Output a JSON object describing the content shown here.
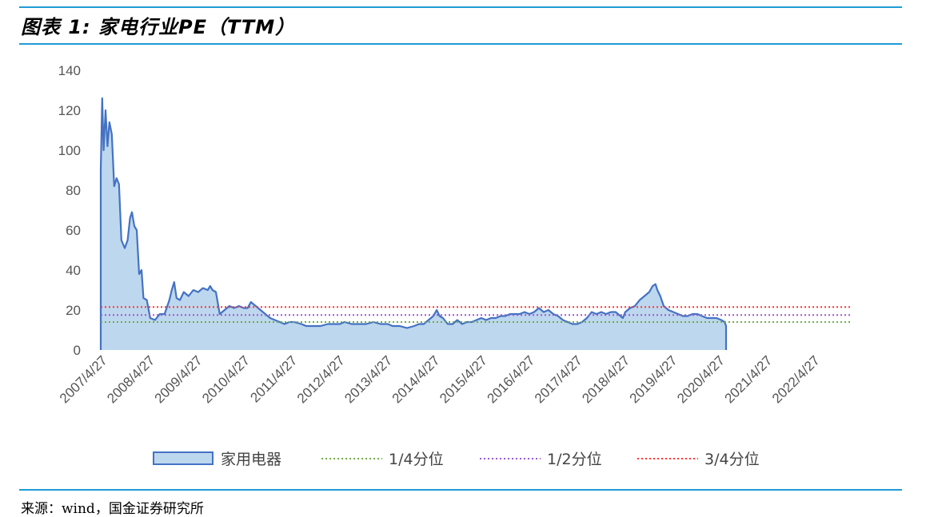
{
  "header": {
    "title": "图表 1:  家电行业PE（TTM）"
  },
  "footer": {
    "source": "来源：wind，国金证券研究所"
  },
  "colors": {
    "rule": "#1f9bd6",
    "series_line": "#4472c4",
    "series_fill": "#bdd7ee",
    "q1": "#70ad47",
    "q2": "#9b59d0",
    "q3": "#ff3333"
  },
  "chart_data": {
    "type": "area",
    "title": "",
    "xlabel": "",
    "ylabel": "",
    "ylim": [
      0,
      140
    ],
    "yticks": [
      0,
      20,
      40,
      60,
      80,
      100,
      120,
      140
    ],
    "x_tick_labels": [
      "2007/4/27",
      "2008/4/27",
      "2009/4/27",
      "2010/4/27",
      "2011/4/27",
      "2012/4/27",
      "2013/4/27",
      "2014/4/27",
      "2015/4/27",
      "2016/4/27",
      "2017/4/27",
      "2018/4/27",
      "2019/4/27",
      "2020/4/27",
      "2021/4/27",
      "2022/4/27"
    ],
    "x_range": [
      2007.32,
      2022.95
    ],
    "series": [
      {
        "name": "家用电器",
        "points": [
          [
            2007.32,
            90
          ],
          [
            2007.35,
            126
          ],
          [
            2007.38,
            100
          ],
          [
            2007.42,
            120
          ],
          [
            2007.46,
            102
          ],
          [
            2007.5,
            114
          ],
          [
            2007.55,
            108
          ],
          [
            2007.6,
            82
          ],
          [
            2007.65,
            86
          ],
          [
            2007.7,
            83
          ],
          [
            2007.75,
            55
          ],
          [
            2007.82,
            51
          ],
          [
            2007.88,
            55
          ],
          [
            2007.93,
            66
          ],
          [
            2007.97,
            69
          ],
          [
            2008.02,
            62
          ],
          [
            2008.07,
            60
          ],
          [
            2008.12,
            38
          ],
          [
            2008.17,
            40
          ],
          [
            2008.21,
            26
          ],
          [
            2008.28,
            25
          ],
          [
            2008.35,
            16
          ],
          [
            2008.45,
            15
          ],
          [
            2008.55,
            18
          ],
          [
            2008.65,
            18
          ],
          [
            2008.75,
            25
          ],
          [
            2008.8,
            30
          ],
          [
            2008.85,
            34
          ],
          [
            2008.9,
            26
          ],
          [
            2008.97,
            25
          ],
          [
            2009.05,
            29
          ],
          [
            2009.15,
            27
          ],
          [
            2009.25,
            30
          ],
          [
            2009.35,
            29
          ],
          [
            2009.45,
            31
          ],
          [
            2009.55,
            30
          ],
          [
            2009.6,
            32
          ],
          [
            2009.65,
            30
          ],
          [
            2009.72,
            29
          ],
          [
            2009.8,
            18
          ],
          [
            2009.9,
            20
          ],
          [
            2010.0,
            22
          ],
          [
            2010.1,
            21
          ],
          [
            2010.2,
            22
          ],
          [
            2010.3,
            21
          ],
          [
            2010.38,
            21
          ],
          [
            2010.45,
            24
          ],
          [
            2010.55,
            22
          ],
          [
            2010.65,
            20
          ],
          [
            2010.75,
            18
          ],
          [
            2010.85,
            16
          ],
          [
            2010.95,
            15
          ],
          [
            2011.05,
            14
          ],
          [
            2011.15,
            13
          ],
          [
            2011.25,
            14
          ],
          [
            2011.35,
            14
          ],
          [
            2011.5,
            13
          ],
          [
            2011.6,
            12
          ],
          [
            2011.75,
            12
          ],
          [
            2011.9,
            12
          ],
          [
            2012.05,
            13
          ],
          [
            2012.15,
            13
          ],
          [
            2012.3,
            13
          ],
          [
            2012.4,
            14
          ],
          [
            2012.55,
            13
          ],
          [
            2012.7,
            13
          ],
          [
            2012.85,
            13
          ],
          [
            2013.0,
            14
          ],
          [
            2013.15,
            13
          ],
          [
            2013.3,
            13
          ],
          [
            2013.4,
            12
          ],
          [
            2013.55,
            12
          ],
          [
            2013.7,
            11
          ],
          [
            2013.85,
            12
          ],
          [
            2013.95,
            13
          ],
          [
            2014.05,
            13
          ],
          [
            2014.15,
            15
          ],
          [
            2014.25,
            17
          ],
          [
            2014.32,
            20
          ],
          [
            2014.38,
            17
          ],
          [
            2014.45,
            16
          ],
          [
            2014.55,
            13
          ],
          [
            2014.65,
            13
          ],
          [
            2014.75,
            15
          ],
          [
            2014.85,
            13
          ],
          [
            2014.95,
            14
          ],
          [
            2015.05,
            14
          ],
          [
            2015.15,
            15
          ],
          [
            2015.25,
            16
          ],
          [
            2015.35,
            15
          ],
          [
            2015.45,
            16
          ],
          [
            2015.55,
            16
          ],
          [
            2015.65,
            17
          ],
          [
            2015.75,
            17
          ],
          [
            2015.85,
            18
          ],
          [
            2015.95,
            18
          ],
          [
            2016.05,
            18
          ],
          [
            2016.15,
            19
          ],
          [
            2016.25,
            18
          ],
          [
            2016.35,
            19
          ],
          [
            2016.45,
            21
          ],
          [
            2016.55,
            19
          ],
          [
            2016.65,
            20
          ],
          [
            2016.75,
            18
          ],
          [
            2016.85,
            17
          ],
          [
            2016.95,
            15
          ],
          [
            2017.05,
            14
          ],
          [
            2017.15,
            13
          ],
          [
            2017.25,
            13
          ],
          [
            2017.35,
            14
          ],
          [
            2017.45,
            16
          ],
          [
            2017.55,
            19
          ],
          [
            2017.65,
            18
          ],
          [
            2017.75,
            19
          ],
          [
            2017.85,
            18
          ],
          [
            2017.95,
            19
          ],
          [
            2018.05,
            19
          ],
          [
            2018.15,
            17
          ],
          [
            2018.2,
            16
          ],
          [
            2018.25,
            19
          ],
          [
            2018.35,
            21
          ],
          [
            2018.45,
            22
          ],
          [
            2018.55,
            25
          ],
          [
            2018.65,
            27
          ],
          [
            2018.75,
            29
          ],
          [
            2018.82,
            32
          ],
          [
            2018.88,
            33
          ],
          [
            2018.92,
            30
          ],
          [
            2018.98,
            27
          ],
          [
            2019.05,
            22
          ],
          [
            2019.15,
            20
          ],
          [
            2019.25,
            19
          ],
          [
            2019.35,
            18
          ],
          [
            2019.45,
            17
          ],
          [
            2019.55,
            17
          ],
          [
            2019.65,
            18
          ],
          [
            2019.75,
            18
          ],
          [
            2019.85,
            17
          ],
          [
            2019.95,
            16
          ],
          [
            2020.05,
            16
          ],
          [
            2020.15,
            16
          ],
          [
            2020.25,
            15
          ],
          [
            2020.32,
            14
          ],
          [
            2020.35,
            12
          ]
        ]
      },
      {
        "name": "1/4分位",
        "value": 14.0
      },
      {
        "name": "1/2分位",
        "value": 17.5
      },
      {
        "name": "3/4分位",
        "value": 21.5
      }
    ],
    "legend": {
      "placement": "bottom",
      "labels": [
        "家用电器",
        "1/4分位",
        "1/2分位",
        "3/4分位"
      ]
    },
    "grid": false
  }
}
